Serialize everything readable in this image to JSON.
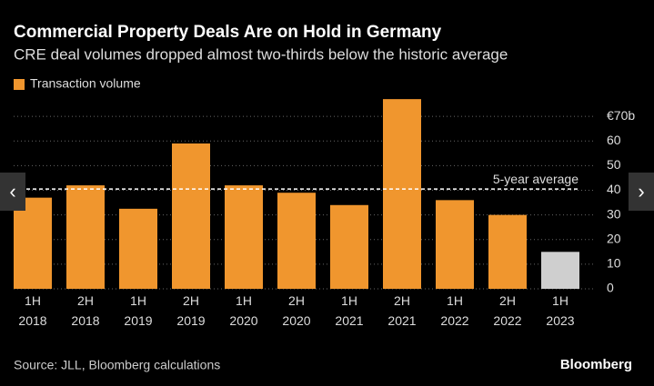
{
  "chart_data": {
    "type": "bar",
    "title": "Commercial Property Deals Are on Hold in Germany",
    "subtitle": "CRE deal volumes dropped almost two-thirds below the historic average",
    "series_name": "Transaction volume",
    "categories": [
      "1H\n2018",
      "2H\n2018",
      "1H\n2019",
      "2H\n2019",
      "1H\n2020",
      "2H\n2020",
      "1H\n2021",
      "2H\n2021",
      "1H\n2022",
      "2H\n2022",
      "1H\n2023"
    ],
    "values": [
      37,
      42,
      32.5,
      59,
      42,
      39,
      34,
      77,
      36,
      30,
      15
    ],
    "colors": [
      "#f0962e",
      "#f0962e",
      "#f0962e",
      "#f0962e",
      "#f0962e",
      "#f0962e",
      "#f0962e",
      "#f0962e",
      "#f0962e",
      "#f0962e",
      "#cfcfcf"
    ],
    "color": "#f0962e",
    "ylim": [
      0,
      80
    ],
    "yticks": [
      0,
      10,
      20,
      30,
      40,
      50,
      60,
      {
        "value": 70,
        "label": "€70b"
      }
    ],
    "grid": true,
    "reference_line": {
      "label": "5-year average",
      "value": 40.5
    },
    "source": "Source: JLL, Bloomberg calculations",
    "brand": "Bloomberg"
  }
}
